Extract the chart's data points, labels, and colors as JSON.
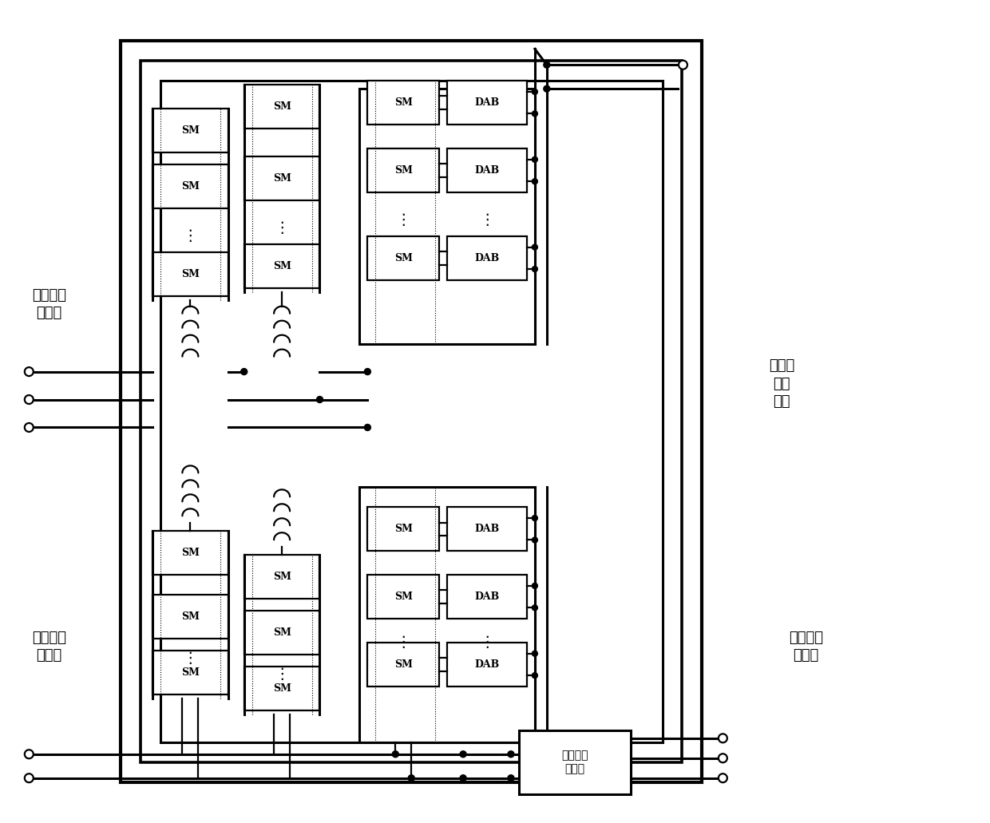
{
  "bg_color": "#ffffff",
  "lc": "#000000",
  "lw": 1.6,
  "lw2": 2.2,
  "lw3": 3.0,
  "fig_w": 12.4,
  "fig_h": 10.31,
  "xlim": [
    0,
    124
  ],
  "ylim": [
    0,
    103
  ],
  "sm_label": "SM",
  "dab_label": "DAB",
  "inverter_label": "三相全桥\n逆变器",
  "mv_ac_label": "中压交流\n配电网",
  "mv_dc_label": "中压直\n流配\n电网",
  "lv_dc_label": "低压直流\n配电网",
  "lv_ac_label": "低压交流\n配电网"
}
